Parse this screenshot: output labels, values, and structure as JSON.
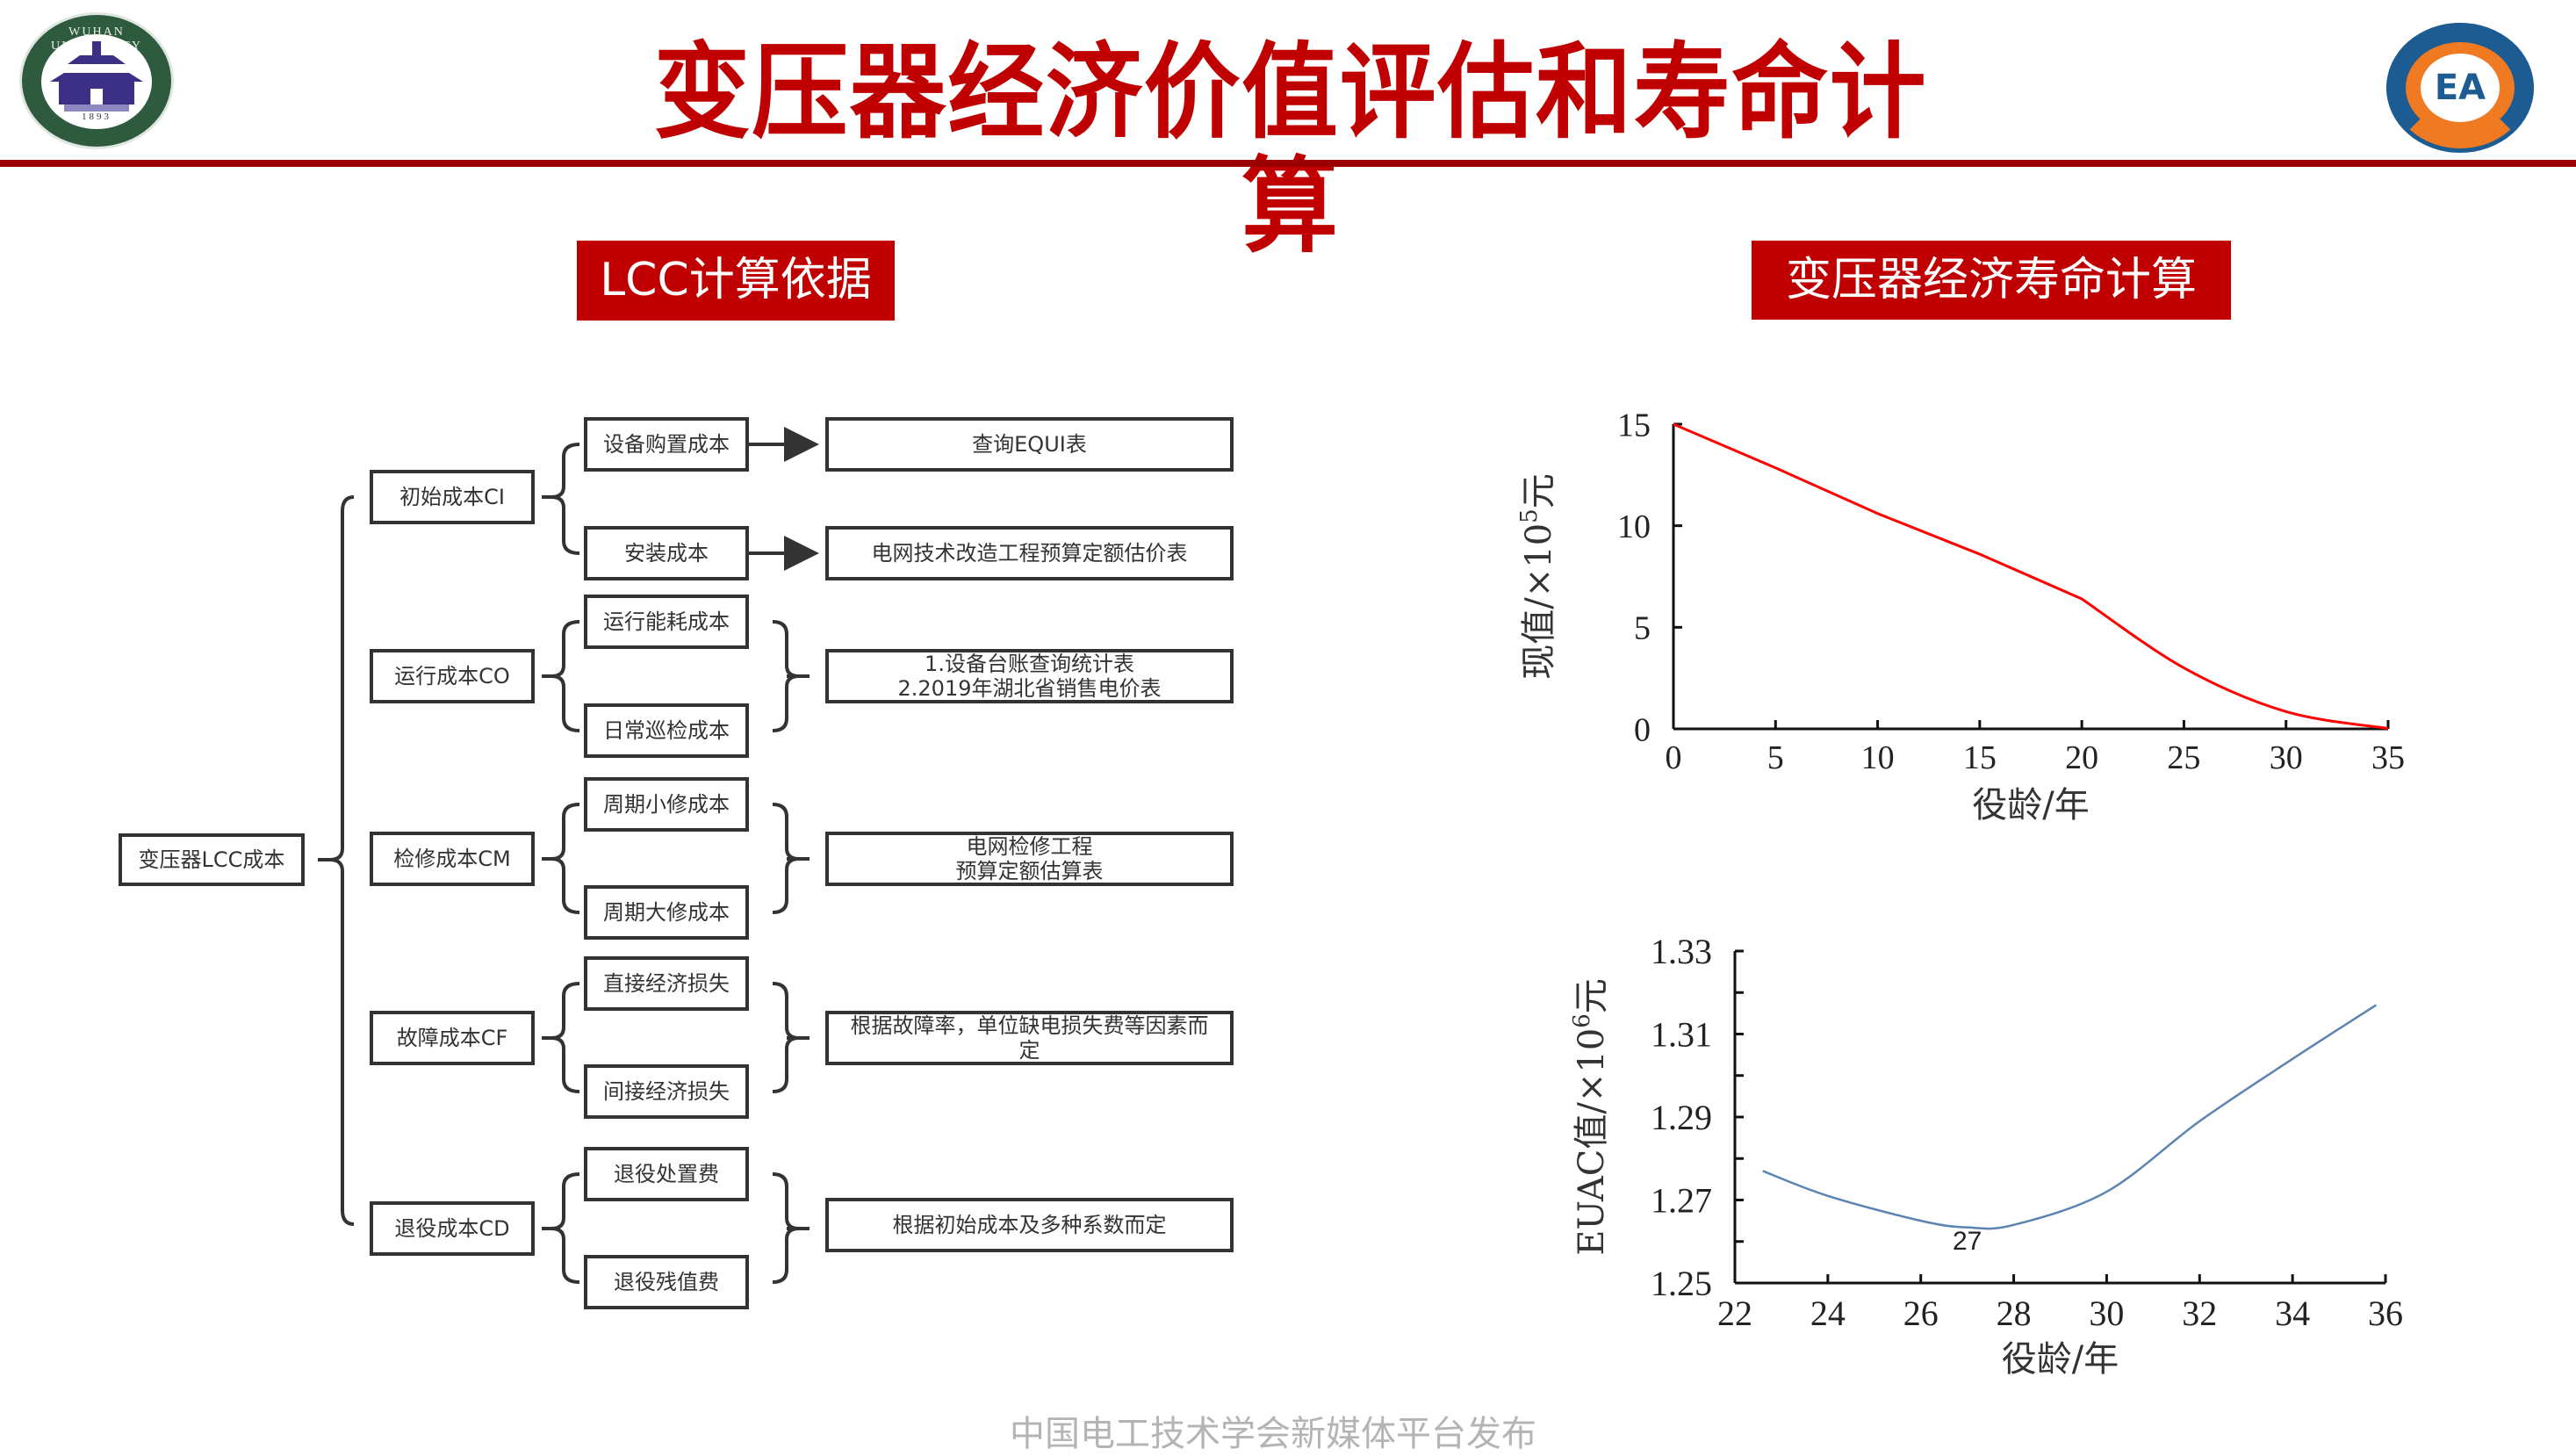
{
  "header": {
    "title": "变压器经济价值评估和寿命计算",
    "left_logo": {
      "ring_text": "WUHAN UNIVERSITY",
      "year": "1893",
      "icon": "wuhan-university-emblem"
    },
    "right_logo": {
      "mark": "EA",
      "icon": "school-of-electrical-engineering-emblem"
    },
    "accent_color": "#c00000",
    "rule_color": "#9b0000"
  },
  "sections": {
    "left_tag": "LCC计算依据",
    "right_tag": "变压器经济寿命计算"
  },
  "diagram": {
    "root": "变压器LCC成本",
    "groups": [
      {
        "label": "初始成本CI",
        "items": [
          "设备购置成本",
          "安装成本"
        ],
        "references": [
          "查询EQUI表",
          "电网技术改造工程预算定额估价表"
        ]
      },
      {
        "label": "运行成本CO",
        "items": [
          "运行能耗成本",
          "日常巡检成本"
        ],
        "references": [
          "1.设备台账查询统计表\n2.2019年湖北省销售电价表"
        ]
      },
      {
        "label": "检修成本CM",
        "items": [
          "周期小修成本",
          "周期大修成本"
        ],
        "references": [
          "电网检修工程\n预算定额估算表"
        ]
      },
      {
        "label": "故障成本CF",
        "items": [
          "直接经济损失",
          "间接经济损失"
        ],
        "references": [
          "根据故障率，单位缺电损失费等因素而定"
        ]
      },
      {
        "label": "退役成本CD",
        "items": [
          "退役处置费",
          "退役残值费"
        ],
        "references": [
          "根据初始成本及多种系数而定"
        ]
      }
    ],
    "ref_lines": {
      "co_line1": "1.设备台账查询统计表",
      "co_line2": "2.2019年湖北省销售电价表",
      "cm_line1": "电网检修工程",
      "cm_line2": "预算定额估算表",
      "cf_line1": "根据故障率，单位缺电损失费等因素而",
      "cf_line2": "定"
    }
  },
  "chart_data": [
    {
      "type": "line",
      "title": "",
      "xlabel": "役龄/年",
      "ylabel": "现值/×10^5元",
      "ylabel_main": "现值/×10",
      "ylabel_exp": "5",
      "ylabel_unit": "元",
      "x": [
        0,
        5,
        10,
        15,
        20,
        25,
        30,
        35
      ],
      "series": [
        {
          "name": "现值",
          "color": "#ff0000",
          "values": [
            15.0,
            12.85,
            10.6,
            8.6,
            6.4,
            3.0,
            0.85,
            0.02
          ]
        }
      ],
      "xlim": [
        0,
        35
      ],
      "ylim": [
        0,
        15
      ],
      "xticks": [
        "0",
        "5",
        "10",
        "15",
        "20",
        "25",
        "30",
        "35"
      ],
      "yticks": [
        "0",
        "5",
        "10",
        "15"
      ],
      "grid": false
    },
    {
      "type": "line",
      "title": "",
      "xlabel": "役龄/年",
      "ylabel": "EUAC值/×10^6元",
      "ylabel_main": "EUAC值/×10",
      "ylabel_exp": "6",
      "ylabel_unit": "元",
      "x": [
        22.6,
        24,
        26,
        27,
        28,
        30,
        32,
        34,
        35.8
      ],
      "series": [
        {
          "name": "EUAC值",
          "color": "#5b84b1",
          "values": [
            1.277,
            1.271,
            1.265,
            1.2634,
            1.264,
            1.272,
            1.289,
            1.304,
            1.317
          ]
        }
      ],
      "xlim": [
        22,
        36
      ],
      "ylim": [
        1.25,
        1.33
      ],
      "xticks": [
        "22",
        "24",
        "26",
        "28",
        "30",
        "32",
        "34",
        "36"
      ],
      "yticks": [
        "1.25",
        "1.27",
        "1.29",
        "1.31",
        "1.33"
      ],
      "annotations": [
        {
          "text": "27",
          "x": 27,
          "y": 1.258
        }
      ],
      "grid": false
    }
  ],
  "footer": {
    "text": "中国电工技术学会新媒体平台发布"
  }
}
